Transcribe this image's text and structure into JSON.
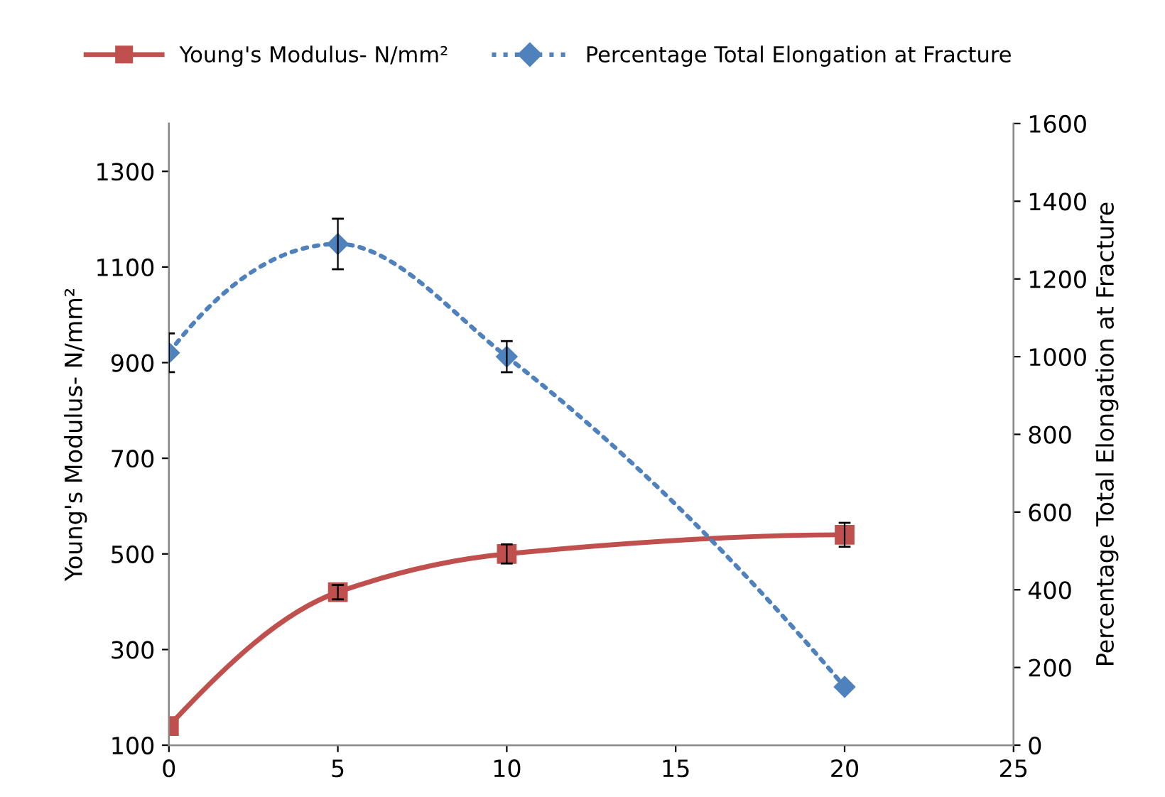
{
  "chart_data": {
    "type": "line",
    "ylabel": "Young's Modulus- N/mm²",
    "y2label": "Percentage Total Elongation at Fracture",
    "x": [
      0,
      5,
      10,
      20
    ],
    "xlim": [
      0,
      25
    ],
    "xticks": [
      0,
      5,
      10,
      15,
      20,
      25
    ],
    "ylim": [
      100,
      1400
    ],
    "yticks": [
      100,
      300,
      500,
      700,
      900,
      1100,
      1300
    ],
    "y2lim": [
      0,
      1600
    ],
    "y2ticks": [
      0,
      200,
      400,
      600,
      800,
      1000,
      1200,
      1400,
      1600
    ],
    "grid": false,
    "legend": "top",
    "series": [
      {
        "name": "Young's Modulus- N/mm²",
        "color": "#c0504d",
        "values": [
          140,
          420,
          500,
          540
        ],
        "errors": [
          null,
          15,
          20,
          25
        ],
        "marker": "square",
        "line_style": "solid"
      },
      {
        "name": "Percentage Total Elongation at Fracture",
        "color": "#4f81bd",
        "values": [
          1010,
          1290,
          1000,
          150
        ],
        "errors": [
          50,
          65,
          40,
          null
        ],
        "marker": "diamond",
        "line_style": "dotted",
        "axis": "y2"
      }
    ]
  }
}
